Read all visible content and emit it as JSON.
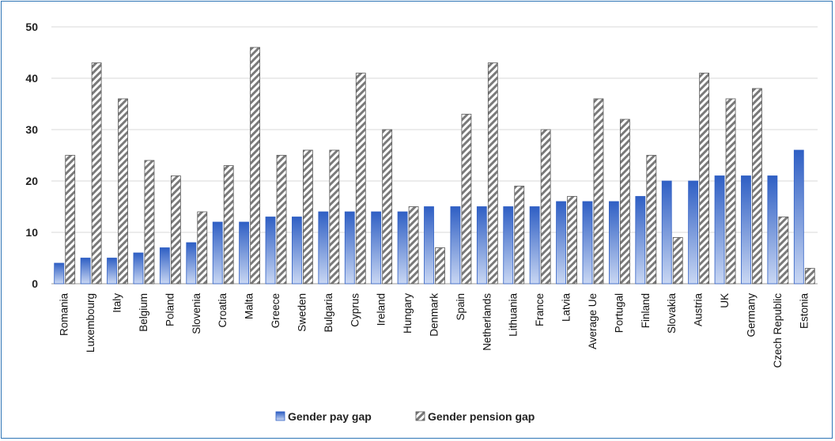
{
  "chart_data": {
    "type": "bar",
    "categories": [
      "Romania",
      "Luxembourg",
      "Italy",
      "Belgium",
      "Poland",
      "Slovenia",
      "Croatia",
      "Malta",
      "Greece",
      "Sweden",
      "Bulgaria",
      "Cyprus",
      "Ireland",
      "Hungary",
      "Denmark",
      "Spain",
      "Netherlands",
      "Lithuania",
      "France",
      "Latvia",
      "Average Ue",
      "Portugal",
      "Finland",
      "Slovakia",
      "Austria",
      "UK",
      "Germany",
      "Czech Republic",
      "Estonia"
    ],
    "series": [
      {
        "name": "Gender pay gap",
        "values": [
          4,
          5,
          5,
          6,
          7,
          8,
          12,
          12,
          13,
          13,
          14,
          14,
          14,
          14,
          15,
          15,
          15,
          15,
          15,
          16,
          16,
          16,
          17,
          20,
          20,
          21,
          21,
          21,
          26
        ],
        "color": "#4472c4"
      },
      {
        "name": "Gender pension gap",
        "values": [
          25,
          43,
          36,
          24,
          21,
          14,
          23,
          46,
          25,
          26,
          26,
          41,
          30,
          15,
          7,
          33,
          43,
          19,
          30,
          17,
          36,
          32,
          25,
          9,
          41,
          36,
          38,
          13,
          3
        ],
        "color": "#7f7f7f"
      }
    ],
    "ylim": [
      0,
      50
    ],
    "yticks": [
      0,
      10,
      20,
      30,
      40,
      50
    ],
    "grid": true,
    "legend": "bottom"
  }
}
